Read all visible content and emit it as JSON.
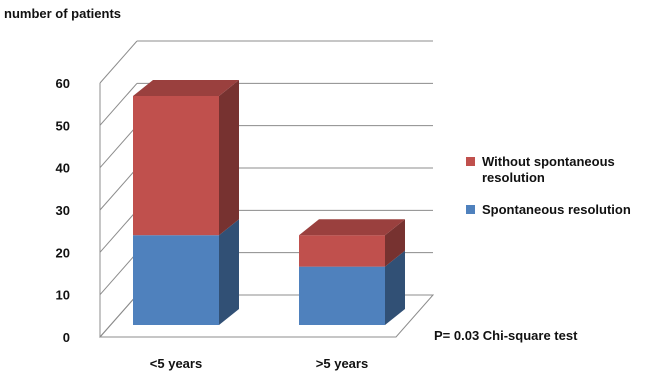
{
  "chart_data": {
    "type": "bar",
    "stacked": true,
    "ylabel": "number of patients",
    "categories": [
      "<5 years",
      ">5 years"
    ],
    "series": [
      {
        "name": "Spontaneous resolution",
        "values": [
          20,
          13
        ],
        "color": "#4f81bd"
      },
      {
        "name": "Without spontaneous resolution",
        "values": [
          31,
          7
        ],
        "color": "#c0504d"
      }
    ],
    "ylim": [
      0,
      60
    ],
    "yticks": [
      0,
      10,
      20,
      30,
      40,
      50,
      60
    ],
    "grid": true,
    "legend_position": "right",
    "annotation": "P= 0.03 Chi-square test"
  },
  "legend": {
    "item_top": "Without spontaneous resolution",
    "item_bottom": "Spontaneous resolution"
  }
}
